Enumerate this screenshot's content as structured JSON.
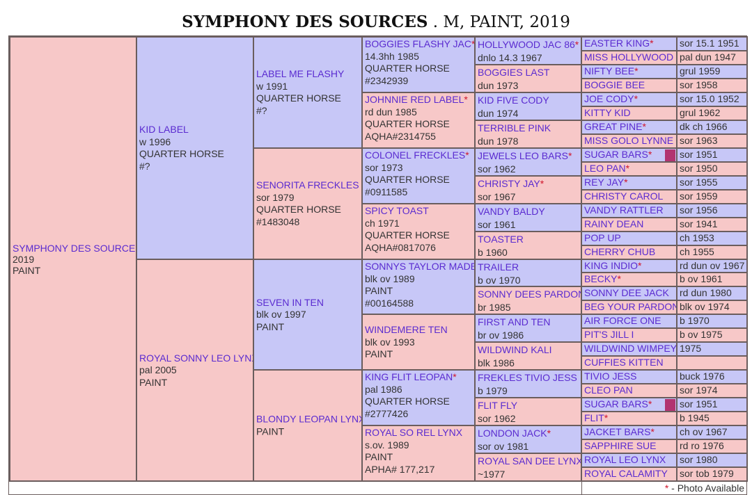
{
  "title": {
    "bold": "SYMPHONY DES SOURCES",
    "rest": " . M, PAINT, 2019"
  },
  "footer": {
    "star": "*",
    "note": " - Photo Available"
  },
  "subject": {
    "name": "SYMPHONY DES SOURCES",
    "lines": [
      "2019",
      "PAINT"
    ]
  },
  "gen1": [
    {
      "name": "KID LABEL",
      "lines": [
        "w 1996",
        "QUARTER HORSE",
        "#?"
      ]
    },
    {
      "name": "ROYAL SONNY LEO LYNX",
      "lines": [
        "pal 2005",
        "PAINT"
      ]
    }
  ],
  "gen2": [
    {
      "name": "LABEL ME FLASHY",
      "lines": [
        "w 1991",
        "QUARTER HORSE",
        "#?"
      ]
    },
    {
      "name": "SENORITA FRECKLES",
      "lines": [
        "sor 1979",
        "QUARTER HORSE",
        "#1483048"
      ]
    },
    {
      "name": "SEVEN IN TEN",
      "lines": [
        "blk ov 1997",
        "PAINT"
      ]
    },
    {
      "name": "BLONDY LEOPAN LYNX",
      "lines": [
        "",
        "PAINT"
      ]
    }
  ],
  "gen3": [
    {
      "name": "BOGGIES FLASHY JAC",
      "star": "*",
      "lines": [
        "14.3hh 1985",
        "QUARTER HORSE",
        "#2342939"
      ]
    },
    {
      "name": "JOHNNIE RED LABEL",
      "star": "*",
      "lines": [
        "rd dun 1985",
        "QUARTER HORSE",
        "AQHA#2314755"
      ]
    },
    {
      "name": "COLONEL FRECKLES",
      "star": "*",
      "lines": [
        "sor 1973",
        "QUARTER HORSE",
        "#0911585"
      ]
    },
    {
      "name": "SPICY TOAST",
      "star": "",
      "lines": [
        "ch 1971",
        "QUARTER HORSE",
        "AQHA#0817076"
      ]
    },
    {
      "name": "SONNYS TAYLOR MADE",
      "star": "",
      "lines": [
        "blk ov 1989",
        "PAINT",
        "#00164588"
      ]
    },
    {
      "name": "WINDEMERE TEN",
      "star": "",
      "lines": [
        "blk ov 1993",
        "PAINT"
      ]
    },
    {
      "name": "KING FLIT LEOPAN",
      "star": "*",
      "lines": [
        "pal 1986",
        "QUARTER HORSE",
        "#2777426"
      ]
    },
    {
      "name": "ROYAL SO REL LYNX",
      "star": "",
      "lines": [
        "s.ov. 1989",
        "PAINT",
        "APHA# 177,217"
      ]
    }
  ],
  "gen4": [
    {
      "name": "HOLLYWOOD JAC 86",
      "star": "*",
      "line": "dnlo 14.3 1967"
    },
    {
      "name": "BOGGIES LAST",
      "star": "",
      "line": "dun 1973"
    },
    {
      "name": "KID FIVE CODY",
      "star": "",
      "line": "dun 1974"
    },
    {
      "name": "TERRIBLE PINK",
      "star": "",
      "line": "dun 1978"
    },
    {
      "name": "JEWELS LEO BARS",
      "star": "*",
      "line": "sor 1962"
    },
    {
      "name": "CHRISTY JAY",
      "star": "*",
      "line": "sor 1967"
    },
    {
      "name": "VANDY BALDY",
      "star": "",
      "line": "sor 1961"
    },
    {
      "name": "TOASTER",
      "star": "",
      "line": "b 1960"
    },
    {
      "name": "TRAILER",
      "star": "",
      "line": "b ov 1970"
    },
    {
      "name": "SONNY DEES PARDON",
      "star": "",
      "line": "br 1985"
    },
    {
      "name": "FIRST AND TEN",
      "star": "",
      "line": "br ov 1986"
    },
    {
      "name": "WILDWIND KALI",
      "star": "",
      "line": "blk 1986"
    },
    {
      "name": "FREKLES TIVIO JESS",
      "star": "",
      "line": "b 1979"
    },
    {
      "name": "FLIT FLY",
      "star": "",
      "line": "sor 1962"
    },
    {
      "name": "LONDON JACK",
      "star": "*",
      "line": "sor ov 1981"
    },
    {
      "name": "ROYAL SAN DEE LYNX",
      "star": "",
      "line": "~1977"
    }
  ],
  "gen5": [
    {
      "name": "EASTER KING",
      "star": "*",
      "info": "sor 15.1 1951"
    },
    {
      "name": "MISS HOLLYWOOD",
      "star": "",
      "info": "pal dun 1947"
    },
    {
      "name": "NIFTY BEE",
      "star": "*",
      "info": "grul 1959"
    },
    {
      "name": "BOGGIE BEE",
      "star": "",
      "info": "sor 1958"
    },
    {
      "name": "JOE CODY",
      "star": "*",
      "info": "sor 15.0 1952"
    },
    {
      "name": "KITTY KID",
      "star": "",
      "info": "grul 1962"
    },
    {
      "name": "GREAT PINE",
      "star": "*",
      "info": "dk ch 1966"
    },
    {
      "name": "MISS GOLO LYNNE",
      "star": "",
      "info": "sor 1963"
    },
    {
      "name": "SUGAR BARS",
      "star": "*",
      "info": "sor 1951",
      "chip": true
    },
    {
      "name": "LEO PAN",
      "star": "*",
      "info": "sor 1950"
    },
    {
      "name": "REY JAY",
      "star": "*",
      "info": "sor 1955"
    },
    {
      "name": "CHRISTY CAROL",
      "star": "",
      "info": "sor 1959"
    },
    {
      "name": "VANDY RATTLER",
      "star": "",
      "info": "sor 1956"
    },
    {
      "name": "RAINY DEAN",
      "star": "",
      "info": "sor 1941"
    },
    {
      "name": "POP UP",
      "star": "",
      "info": "ch 1953"
    },
    {
      "name": "CHERRY CHUB",
      "star": "",
      "info": "ch 1955"
    },
    {
      "name": "KING INDIO",
      "star": "*",
      "info": "rd dun ov 1967"
    },
    {
      "name": "BECKY",
      "star": "*",
      "info": "b ov 1961"
    },
    {
      "name": "SONNY DEE JACK",
      "star": "",
      "info": "rd dun 1980"
    },
    {
      "name": "BEG YOUR PARDON",
      "star": "",
      "info": "blk ov 1974"
    },
    {
      "name": "AIR FORCE ONE",
      "star": "",
      "info": "b 1970"
    },
    {
      "name": "PIT'S JILL I",
      "star": "",
      "info": "b ov 1975"
    },
    {
      "name": "WILDWIND WIMPEY",
      "star": "",
      "info": "1975"
    },
    {
      "name": "CUFFIES KITTEN",
      "star": "",
      "info": ""
    },
    {
      "name": "TIVIO JESS",
      "star": "",
      "info": "buck 1976"
    },
    {
      "name": "CLEO PAN",
      "star": "",
      "info": "sor 1974"
    },
    {
      "name": "SUGAR BARS",
      "star": "*",
      "info": "sor 1951",
      "chip": true
    },
    {
      "name": "FLIT",
      "star": "*",
      "info": "b 1945"
    },
    {
      "name": "JACKET BARS",
      "star": "*",
      "info": "ch ov 1967"
    },
    {
      "name": "SAPPHIRE SUE",
      "star": "",
      "info": "rd ro 1976"
    },
    {
      "name": "ROYAL LEO LYNX",
      "star": "",
      "info": "sor 1980"
    },
    {
      "name": "ROYAL CALAMITY",
      "star": "",
      "info": "sor tob 1979"
    }
  ],
  "colors": {
    "sire": "#c7c7f7",
    "dam": "#f7c8c8",
    "name_text": "#5a2bd0",
    "star": "#d0142a",
    "photo_chip": "#b23470"
  }
}
